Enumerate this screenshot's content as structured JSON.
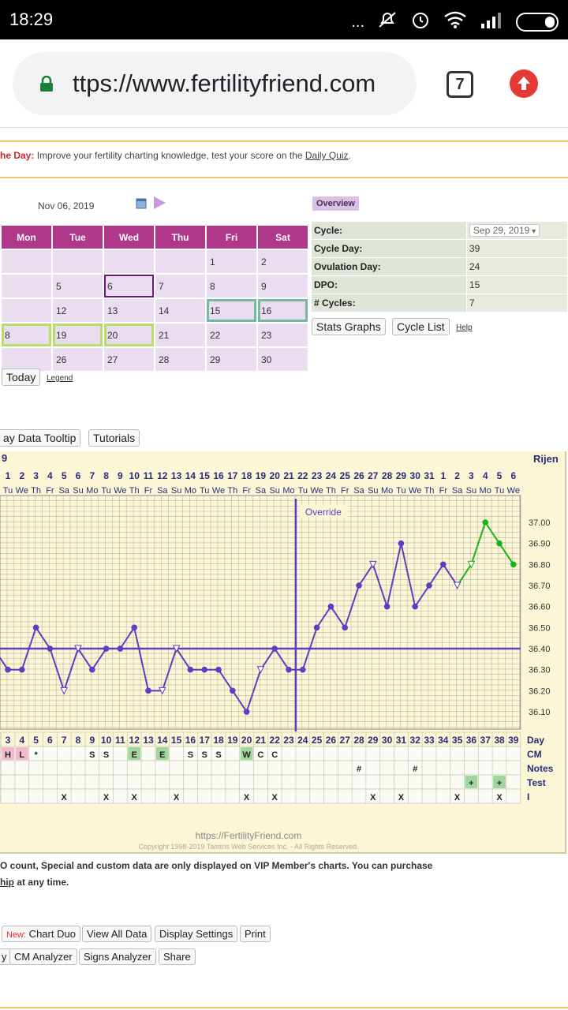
{
  "status": {
    "time": "18:29",
    "dots": "...",
    "icons": [
      "mute-icon",
      "alarm-icon",
      "wifi-icon",
      "signal-icon",
      "battery-icon"
    ]
  },
  "browser": {
    "url": "ttps://www.fertilityfriend.com",
    "tab_count": "7"
  },
  "tip": {
    "prefix": "he Day:",
    "text": " Improve your fertility charting knowledge, test your score on the ",
    "link": "Daily Quiz",
    "suffix": "."
  },
  "calendar": {
    "date": "Nov 06, 2019",
    "headers": [
      "Mon",
      "Tue",
      "Wed",
      "Thu",
      "Fri",
      "Sat"
    ],
    "rows": [
      [
        "",
        "",
        "",
        "",
        "1",
        "2"
      ],
      [
        "",
        "5",
        "6",
        "7",
        "8",
        "9"
      ],
      [
        "",
        "12",
        "13",
        "14",
        "15",
        "16"
      ],
      [
        "8",
        "19",
        "20",
        "21",
        "22",
        "23"
      ],
      [
        "",
        "26",
        "27",
        "28",
        "29",
        "30"
      ]
    ],
    "today_label": "Today",
    "legend_label": "Legend"
  },
  "overview": {
    "title": "Overview",
    "rows": [
      {
        "k": "Cycle:",
        "v": "Sep 29, 2019"
      },
      {
        "k": "Cycle Day:",
        "v": "39"
      },
      {
        "k": "Ovulation Day:",
        "v": "24"
      },
      {
        "k": "DPO:",
        "v": "15"
      },
      {
        "k": "# Cycles:",
        "v": "7"
      }
    ],
    "stats_btn": "Stats Graphs",
    "cycle_btn": "Cycle List",
    "help": "Help"
  },
  "tools": {
    "tooltip_btn": "ay Data Tooltip",
    "tutorials_btn": "Tutorials"
  },
  "chart_data": {
    "type": "line",
    "title": "Rijen",
    "override_label": "Override",
    "cycle_start_label": "9",
    "dates": [
      "1",
      "2",
      "3",
      "4",
      "5",
      "6",
      "7",
      "8",
      "9",
      "10",
      "11",
      "12",
      "13",
      "14",
      "15",
      "16",
      "17",
      "18",
      "19",
      "20",
      "21",
      "22",
      "23",
      "24",
      "25",
      "26",
      "27",
      "28",
      "29",
      "30",
      "31",
      "1",
      "2",
      "3",
      "4",
      "5",
      "6"
    ],
    "weekdays": [
      "Tu",
      "We",
      "Th",
      "Fr",
      "Sa",
      "Su",
      "Mo",
      "Tu",
      "We",
      "Th",
      "Fr",
      "Sa",
      "Su",
      "Mo",
      "Tu",
      "We",
      "Th",
      "Fr",
      "Sa",
      "Su",
      "Mo",
      "Tu",
      "We",
      "Th",
      "Fr",
      "Sa",
      "Su",
      "Mo",
      "Tu",
      "We",
      "Th",
      "Fr",
      "Sa",
      "Su",
      "Mo",
      "Tu",
      "We"
    ],
    "cycle_days": [
      "3",
      "4",
      "5",
      "6",
      "7",
      "8",
      "9",
      "10",
      "11",
      "12",
      "13",
      "14",
      "15",
      "16",
      "17",
      "18",
      "19",
      "20",
      "21",
      "22",
      "23",
      "24",
      "25",
      "26",
      "27",
      "28",
      "29",
      "30",
      "31",
      "32",
      "33",
      "34",
      "35",
      "36",
      "37",
      "38",
      "39"
    ],
    "y_ticks": [
      "37.00",
      "36.90",
      "36.80",
      "36.70",
      "36.60",
      "36.50",
      "36.40",
      "36.30",
      "36.20",
      "36.10"
    ],
    "coverline": 36.4,
    "temps": [
      36.3,
      36.3,
      36.5,
      36.4,
      36.2,
      36.4,
      36.3,
      36.4,
      36.4,
      36.5,
      36.2,
      36.2,
      36.4,
      36.3,
      36.3,
      36.3,
      36.2,
      36.1,
      36.3,
      36.4,
      36.3,
      36.3,
      36.5,
      36.6,
      36.5,
      36.7,
      36.8,
      36.6,
      36.9,
      36.6,
      36.7,
      36.8,
      36.7,
      36.8,
      37.0,
      36.9,
      36.8
    ],
    "open_points": [
      4,
      5,
      11,
      12,
      18,
      26,
      32,
      33
    ],
    "pre_temp": 36.4,
    "ovulation_index": 21,
    "rows": {
      "CM": [
        "H",
        "L",
        "*",
        "",
        "",
        "",
        "S",
        "S",
        "",
        "E",
        "",
        "E",
        "",
        "S",
        "S",
        "S",
        "",
        "W",
        "C",
        "C",
        "",
        "",
        "",
        "",
        "",
        "",
        "",
        "",
        "",
        "",
        "",
        "",
        "",
        "",
        "",
        "",
        ""
      ],
      "Notes": [
        "",
        "",
        "",
        "",
        "",
        "",
        "",
        "",
        "",
        "",
        "",
        "",
        "",
        "",
        "",
        "",
        "",
        "",
        "",
        "",
        "",
        "",
        "",
        "",
        "",
        "#",
        "",
        "",
        "",
        "#",
        "",
        "",
        "",
        "",
        "",
        "",
        ""
      ],
      "Test": [
        "",
        "",
        "",
        "",
        "",
        "",
        "",
        "",
        "",
        "",
        "",
        "",
        "",
        "",
        "",
        "",
        "",
        "",
        "",
        "",
        "",
        "",
        "",
        "",
        "",
        "",
        "",
        "",
        "",
        "",
        "",
        "",
        "",
        "+",
        "",
        "+",
        ""
      ],
      "I": [
        "",
        "",
        "",
        "",
        "X",
        "",
        "",
        "X",
        "",
        "X",
        "",
        "",
        "X",
        "",
        "",
        "",
        "",
        "X",
        "",
        "X",
        "",
        "",
        "",
        "",
        "",
        "",
        "X",
        "",
        "X",
        "",
        "",
        "",
        "X",
        "",
        "",
        "X",
        ""
      ]
    },
    "row_labels": {
      "day": "Day",
      "cm": "CM",
      "notes": "Notes",
      "test": "Test",
      "i": "I"
    },
    "footer_url": "https://FertilityFriend.com",
    "copyright": "Copyright 1998-2019 Tamtris Web Services Inc. - All Rights Reserved."
  },
  "notes": {
    "line1": "O count, Special and custom data are only displayed on VIP Member's charts. You can purchase",
    "line2_link": "hip",
    "line2_rest": " at any time."
  },
  "bottom_buttons": {
    "new_prefix": "New:",
    "chart_duo": " Chart Duo",
    "view_all": "View All Data",
    "display": "Display Settings",
    "print": "Print",
    "cut": "y",
    "cm_analyzer": "CM Analyzer",
    "signs": "Signs Analyzer",
    "share": "Share"
  },
  "colors": {
    "calendar_header": "#b0388a",
    "chart_bg": "#fbf7d6",
    "line": "#5b3fc0",
    "post_line": "#1db31d",
    "cm_h": "#f3b8cf",
    "cm_e": "#9fd79f",
    "coverline": "#5b3fc0"
  }
}
